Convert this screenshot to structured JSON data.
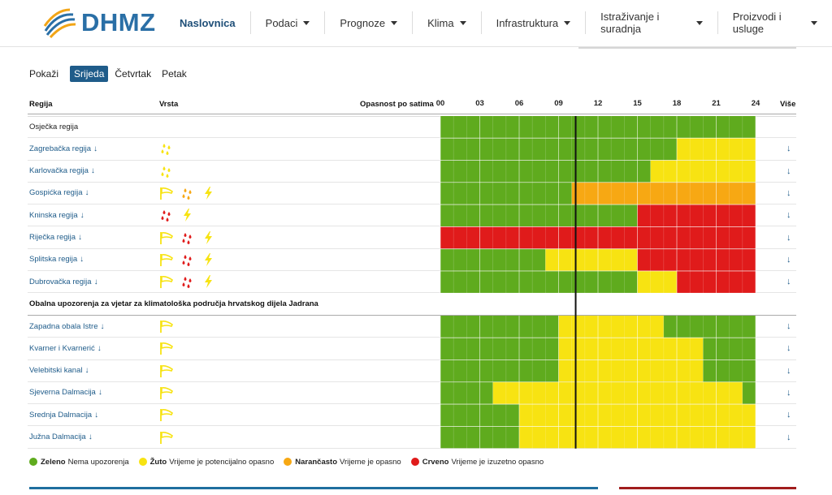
{
  "brand": {
    "name": "DHMZ"
  },
  "nav": [
    {
      "label": "Naslovnica",
      "has_menu": false
    },
    {
      "label": "Podaci",
      "has_menu": true
    },
    {
      "label": "Prognoze",
      "has_menu": true
    },
    {
      "label": "Klima",
      "has_menu": true
    },
    {
      "label": "Infrastruktura",
      "has_menu": true
    },
    {
      "label": "Istraživanje i suradnja",
      "has_menu": true
    },
    {
      "label": "Proizvodi i usluge",
      "has_menu": true
    }
  ],
  "days": {
    "label": "Pokaži",
    "options": [
      "Srijeda",
      "Četvrtak",
      "Petak"
    ],
    "selected": "Srijeda"
  },
  "table": {
    "col_region": "Regija",
    "col_type": "Vrsta",
    "col_hazard": "Opasnost po satima",
    "col_more": "Više",
    "hours": [
      "00",
      "03",
      "06",
      "09",
      "12",
      "15",
      "18",
      "21",
      "24"
    ],
    "more_symbol": "↓",
    "current_hour": 10.3
  },
  "colors": {
    "green": "#5fab1e",
    "yellow": "#f7e312",
    "orange": "#f7a813",
    "red": "#e01b1b"
  },
  "regions": [
    {
      "name": "Osječka regija",
      "link": false,
      "icons": [],
      "segments": [
        [
          "green",
          0,
          24
        ]
      ]
    },
    {
      "name": "Zagrebačka regija",
      "link": true,
      "icons": [
        "rain-yellow"
      ],
      "segments": [
        [
          "green",
          0,
          18
        ],
        [
          "yellow",
          18,
          24
        ]
      ]
    },
    {
      "name": "Karlovačka regija",
      "link": true,
      "icons": [
        "rain-yellow"
      ],
      "segments": [
        [
          "green",
          0,
          16
        ],
        [
          "yellow",
          16,
          24
        ]
      ]
    },
    {
      "name": "Gospićka regija",
      "link": true,
      "icons": [
        "wind-yellow",
        "rain-orange",
        "thunder-yellow"
      ],
      "segments": [
        [
          "green",
          0,
          10
        ],
        [
          "orange",
          10,
          24
        ]
      ]
    },
    {
      "name": "Kninska regija",
      "link": true,
      "icons": [
        "rain-red",
        "thunder-yellow"
      ],
      "segments": [
        [
          "green",
          0,
          15
        ],
        [
          "red",
          15,
          24
        ]
      ]
    },
    {
      "name": "Riječka regija",
      "link": true,
      "icons": [
        "wind-yellow",
        "rain-red",
        "thunder-yellow"
      ],
      "segments": [
        [
          "red",
          0,
          24
        ]
      ]
    },
    {
      "name": "Splitska regija",
      "link": true,
      "icons": [
        "wind-yellow",
        "rain-red",
        "thunder-yellow"
      ],
      "segments": [
        [
          "green",
          0,
          8
        ],
        [
          "yellow",
          8,
          15
        ],
        [
          "red",
          15,
          24
        ]
      ]
    },
    {
      "name": "Dubrovačka regija",
      "link": true,
      "icons": [
        "wind-yellow",
        "rain-red",
        "thunder-yellow"
      ],
      "segments": [
        [
          "green",
          0,
          15
        ],
        [
          "yellow",
          15,
          18
        ],
        [
          "red",
          18,
          24
        ]
      ]
    }
  ],
  "section_title": "Obalna upozorenja za vjetar za klimatološka područja hrvatskog dijela Jadrana",
  "coastal": [
    {
      "name": "Zapadna obala Istre",
      "icons": [
        "wind-yellow"
      ],
      "segments": [
        [
          "green",
          0,
          9
        ],
        [
          "yellow",
          9,
          17
        ],
        [
          "green",
          17,
          24
        ]
      ]
    },
    {
      "name": "Kvarner i Kvarnerić",
      "icons": [
        "wind-yellow"
      ],
      "segments": [
        [
          "green",
          0,
          9
        ],
        [
          "yellow",
          9,
          20
        ],
        [
          "green",
          20,
          24
        ]
      ]
    },
    {
      "name": "Velebitski kanal",
      "icons": [
        "wind-yellow"
      ],
      "segments": [
        [
          "green",
          0,
          9
        ],
        [
          "yellow",
          9,
          20
        ],
        [
          "green",
          20,
          24
        ]
      ]
    },
    {
      "name": "Sjeverna Dalmacija",
      "icons": [
        "wind-yellow"
      ],
      "segments": [
        [
          "green",
          0,
          4
        ],
        [
          "yellow",
          4,
          23
        ],
        [
          "green",
          23,
          24
        ]
      ]
    },
    {
      "name": "Srednja Dalmacija",
      "icons": [
        "wind-yellow"
      ],
      "segments": [
        [
          "green",
          0,
          6
        ],
        [
          "yellow",
          6,
          24
        ]
      ]
    },
    {
      "name": "Južna Dalmacija",
      "icons": [
        "wind-yellow"
      ],
      "segments": [
        [
          "green",
          0,
          6
        ],
        [
          "yellow",
          6,
          24
        ]
      ]
    }
  ],
  "legend": [
    {
      "color": "green",
      "title": "Zeleno",
      "text": "Nema upozorenja"
    },
    {
      "color": "yellow",
      "title": "Žuto",
      "text": "Vrijeme je potencijalno opasno"
    },
    {
      "color": "orange",
      "title": "Narančasto",
      "text": "Vrijeme je opasno"
    },
    {
      "color": "red",
      "title": "Crveno",
      "text": "Vrijeme je izuzetno opasno"
    }
  ]
}
